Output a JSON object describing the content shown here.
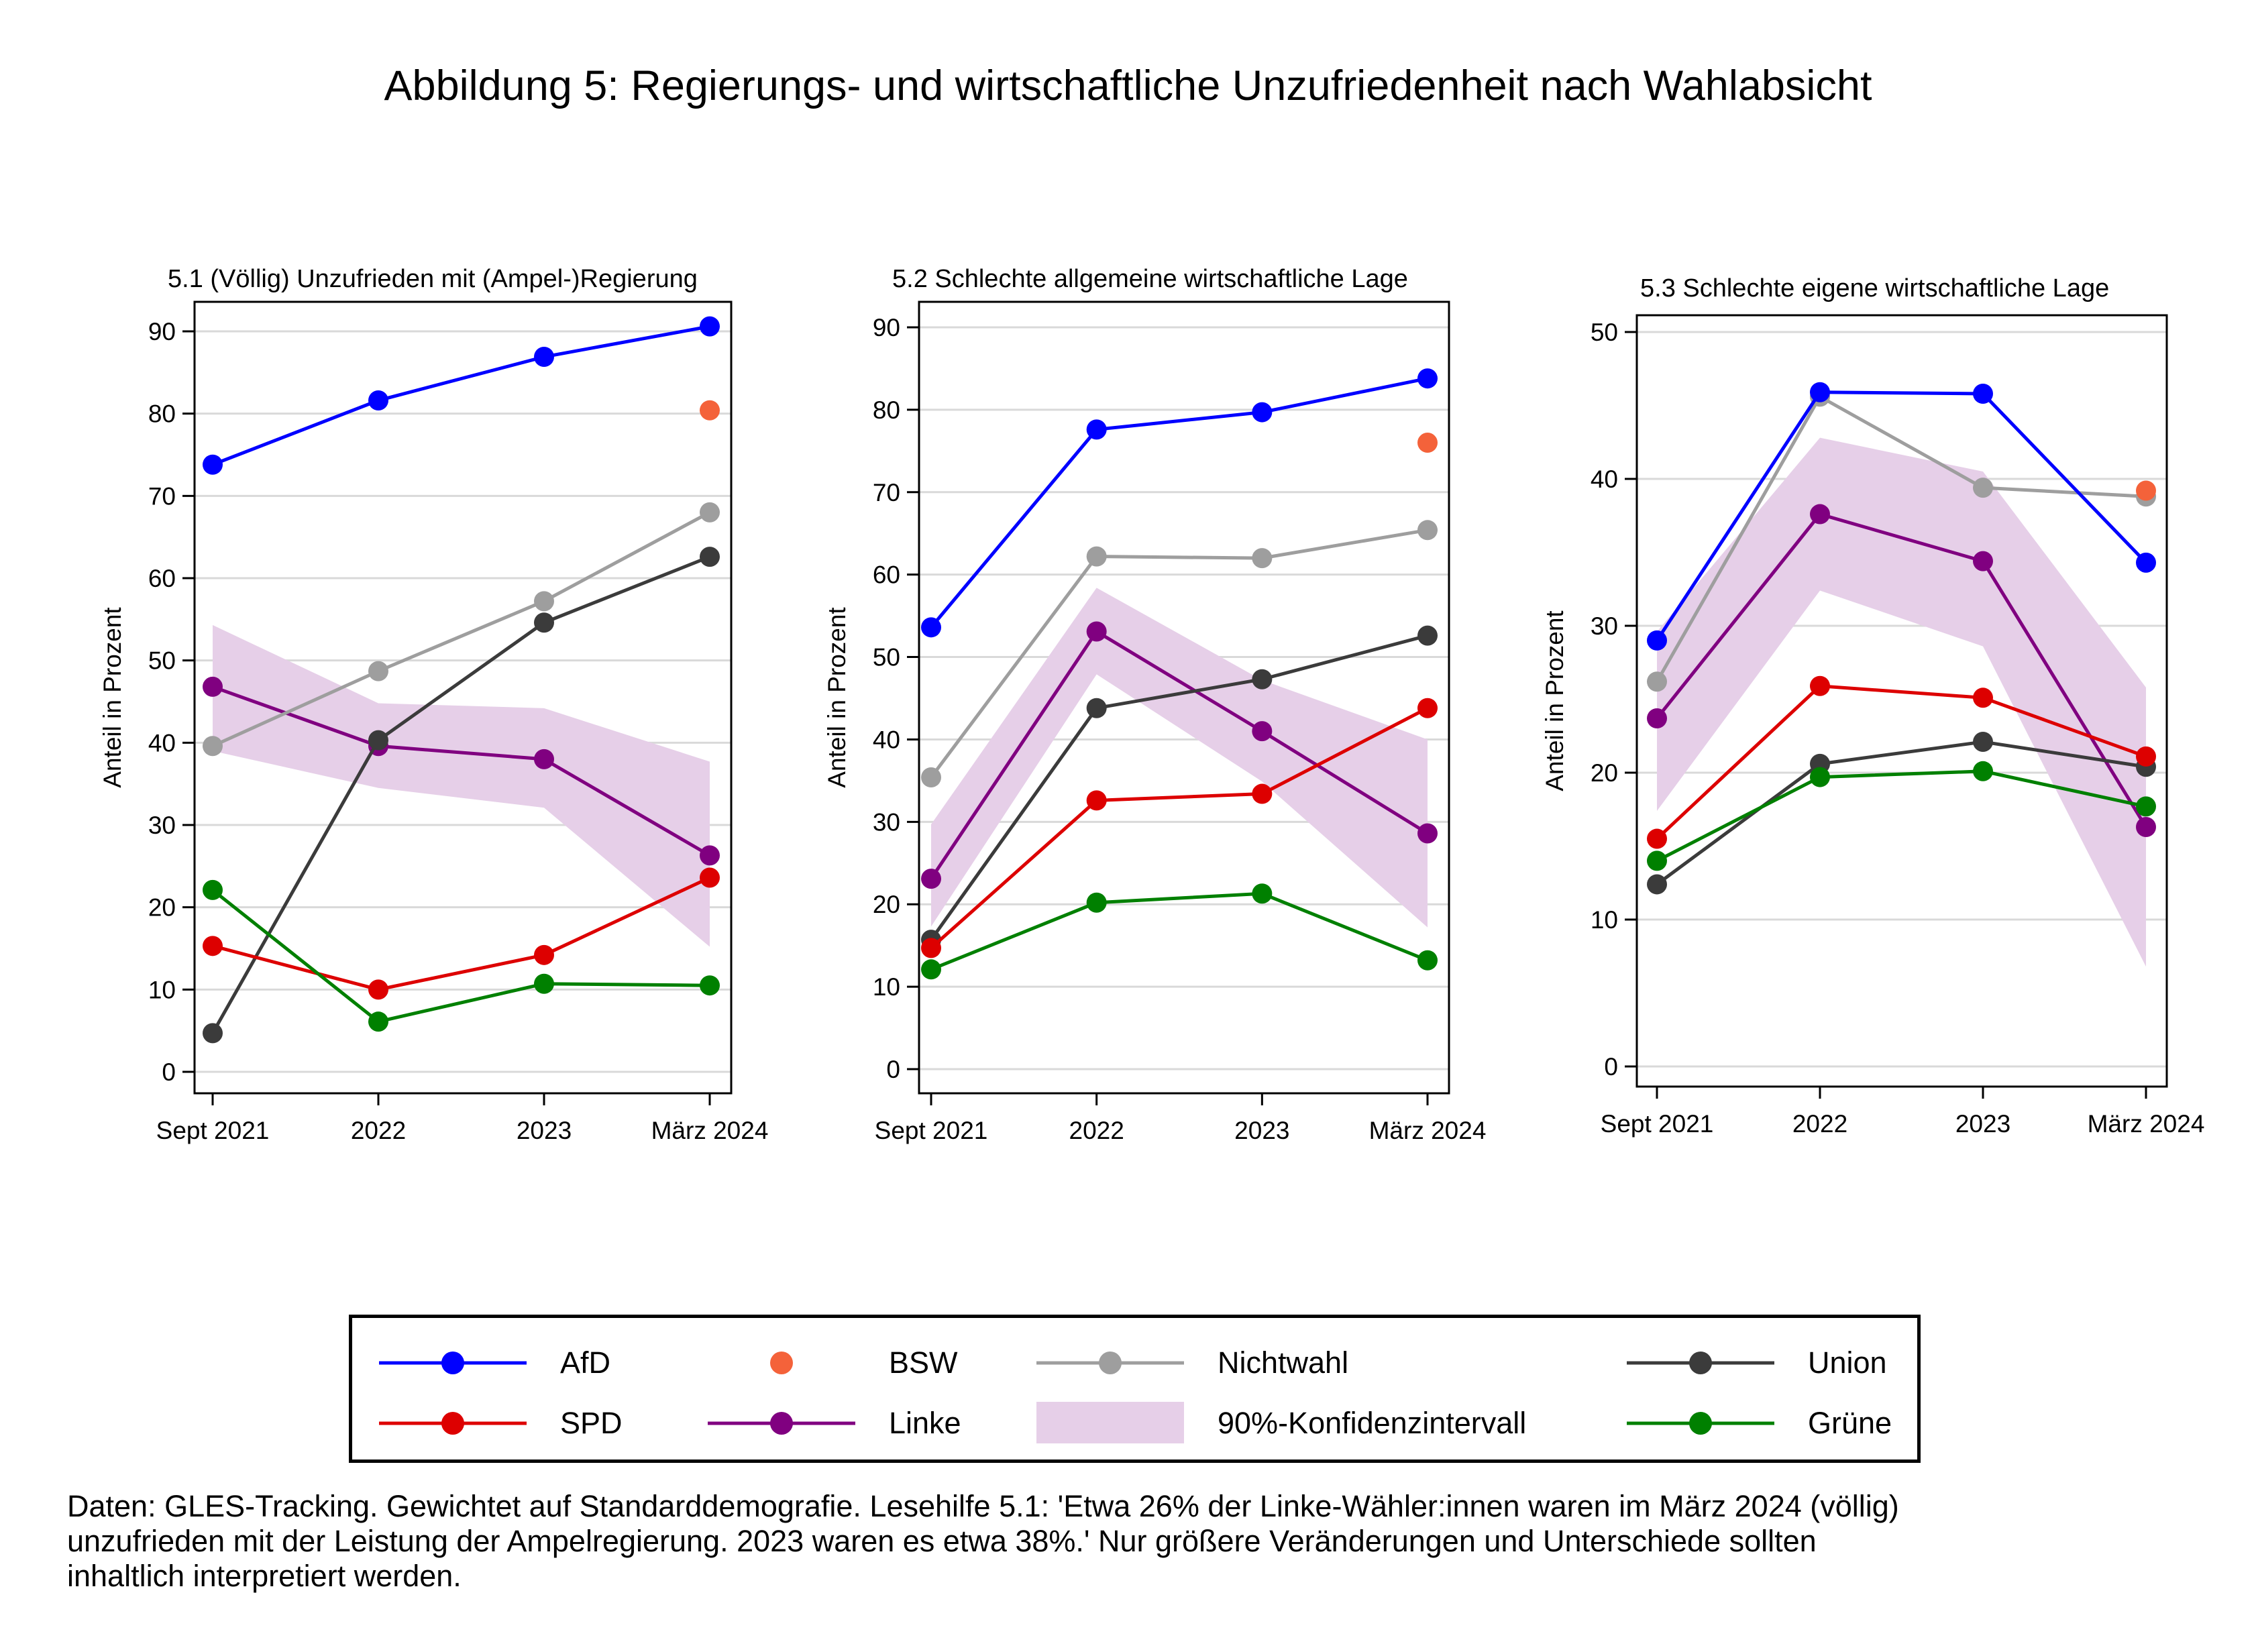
{
  "title": "Abbildung 5: Regierungs- und wirtschaftliche Unzufriedenheit nach Wahlabsicht",
  "colors": {
    "AfD": "#0000ff",
    "BSW": "#f4623a",
    "Nichtwahl": "#9e9e9e",
    "Union": "#3b3b3b",
    "SPD": "#dd0000",
    "Linke": "#800080",
    "CI": "#e6cfe8",
    "Gruene": "#008000"
  },
  "legend": [
    {
      "key": "AfD",
      "label": "AfD",
      "type": "line"
    },
    {
      "key": "BSW",
      "label": "BSW",
      "type": "marker"
    },
    {
      "key": "Nichtwahl",
      "label": "Nichtwahl",
      "type": "line"
    },
    {
      "key": "Union",
      "label": "Union",
      "type": "line"
    },
    {
      "key": "SPD",
      "label": "SPD",
      "type": "line"
    },
    {
      "key": "Linke",
      "label": "Linke",
      "type": "line"
    },
    {
      "key": "CI",
      "label": "90%-Konfidenzintervall",
      "type": "area"
    },
    {
      "key": "Gruene",
      "label": "Grüne",
      "type": "line"
    }
  ],
  "footnote": [
    "Daten: GLES-Tracking. Gewichtet auf Standarddemografie. Lesehilfe 5.1: 'Etwa 26% der Linke-Wähler:innen waren im März 2024 (völlig)",
    "unzufrieden mit der Leistung der Ampelregierung. 2023 waren es etwa 38%.' Nur größere Veränderungen und Unterschiede sollten",
    "inhaltlich interpretiert werden."
  ],
  "chart_data": [
    {
      "type": "line",
      "title": "5.1 (Völlig) Unzufrieden mit (Ampel-)Regierung",
      "ylabel": "Anteil in Prozent",
      "categories": [
        "Sept 2021",
        "2022",
        "2023",
        "März 2024"
      ],
      "ylim": [
        0,
        90
      ],
      "yticks": [
        0,
        10,
        20,
        30,
        40,
        50,
        60,
        70,
        80,
        90
      ],
      "grid": true,
      "series": [
        {
          "name": "AfD",
          "key": "AfD",
          "values": [
            73.8,
            81.6,
            86.9,
            90.6
          ]
        },
        {
          "name": "Nichtwahl",
          "key": "Nichtwahl",
          "values": [
            39.6,
            48.7,
            57.2,
            68.0
          ]
        },
        {
          "name": "Union",
          "key": "Union",
          "values": [
            4.7,
            40.3,
            54.6,
            62.6
          ]
        },
        {
          "name": "Linke",
          "key": "Linke",
          "values": [
            46.8,
            39.6,
            38.0,
            26.3
          ]
        },
        {
          "name": "SPD",
          "key": "SPD",
          "values": [
            15.3,
            10.0,
            14.2,
            23.6
          ]
        },
        {
          "name": "Grüne",
          "key": "Gruene",
          "values": [
            22.1,
            6.1,
            10.7,
            10.5
          ]
        },
        {
          "name": "BSW",
          "key": "BSW",
          "values": [
            null,
            null,
            null,
            80.4
          ]
        }
      ],
      "ci": {
        "series": "Linke",
        "lower": [
          39.0,
          34.5,
          32.1,
          15.2
        ],
        "upper": [
          54.3,
          44.8,
          44.2,
          37.7
        ]
      }
    },
    {
      "type": "line",
      "title": "5.2 Schlechte allgemeine wirtschaftliche Lage",
      "ylabel": "Anteil in Prozent",
      "categories": [
        "Sept 2021",
        "2022",
        "2023",
        "März 2024"
      ],
      "ylim": [
        0,
        90
      ],
      "yticks": [
        0,
        10,
        20,
        30,
        40,
        50,
        60,
        70,
        80,
        90
      ],
      "grid": true,
      "series": [
        {
          "name": "AfD",
          "key": "AfD",
          "values": [
            53.6,
            77.6,
            79.7,
            83.8
          ]
        },
        {
          "name": "Nichtwahl",
          "key": "Nichtwahl",
          "values": [
            35.4,
            62.2,
            62.0,
            65.4
          ]
        },
        {
          "name": "Union",
          "key": "Union",
          "values": [
            15.7,
            43.8,
            47.3,
            52.6
          ]
        },
        {
          "name": "Linke",
          "key": "Linke",
          "values": [
            23.1,
            53.1,
            41.0,
            28.6
          ]
        },
        {
          "name": "SPD",
          "key": "SPD",
          "values": [
            14.7,
            32.6,
            33.4,
            43.8
          ]
        },
        {
          "name": "Grüne",
          "key": "Gruene",
          "values": [
            12.1,
            20.2,
            21.3,
            13.2
          ]
        },
        {
          "name": "BSW",
          "key": "BSW",
          "values": [
            null,
            null,
            null,
            76.0
          ]
        }
      ],
      "ci": {
        "series": "Linke",
        "lower": [
          17.3,
          47.9,
          34.9,
          17.2
        ],
        "upper": [
          29.7,
          58.4,
          47.2,
          40.0
        ]
      }
    },
    {
      "type": "line",
      "title": "5.3 Schlechte eigene wirtschaftliche Lage",
      "ylabel": "Anteil in Prozent",
      "categories": [
        "Sept 2021",
        "2022",
        "2023",
        "März 2024"
      ],
      "ylim": [
        0,
        50
      ],
      "yticks": [
        0,
        10,
        20,
        30,
        40,
        50
      ],
      "grid": true,
      "series": [
        {
          "name": "AfD",
          "key": "AfD",
          "values": [
            29.0,
            45.9,
            45.8,
            34.3
          ]
        },
        {
          "name": "Nichtwahl",
          "key": "Nichtwahl",
          "values": [
            26.2,
            45.6,
            39.4,
            38.8
          ]
        },
        {
          "name": "Linke",
          "key": "Linke",
          "values": [
            23.7,
            37.6,
            34.4,
            16.3
          ]
        },
        {
          "name": "SPD",
          "key": "SPD",
          "values": [
            15.5,
            25.9,
            25.1,
            21.1
          ]
        },
        {
          "name": "Union",
          "key": "Union",
          "values": [
            12.4,
            20.6,
            22.1,
            20.4
          ]
        },
        {
          "name": "Grüne",
          "key": "Gruene",
          "values": [
            14.0,
            19.7,
            20.1,
            17.7
          ]
        },
        {
          "name": "BSW",
          "key": "BSW",
          "values": [
            null,
            null,
            null,
            39.2
          ]
        }
      ],
      "ci": {
        "series": "Linke",
        "lower": [
          17.4,
          32.4,
          28.6,
          6.8
        ],
        "upper": [
          29.6,
          42.8,
          40.5,
          25.8
        ]
      }
    }
  ]
}
